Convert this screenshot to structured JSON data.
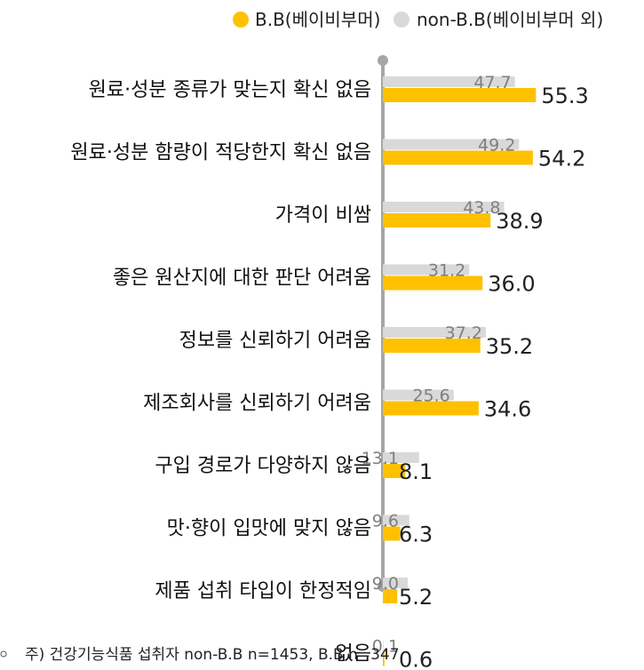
{
  "legend": {
    "bb": "B.B(베이비부머)",
    "non_bb": "non-B.B(베이비부머 외)"
  },
  "note": "주) 건강기능식품 섭취자 non-B.B n=1453, B.B n=347",
  "colors": {
    "bb": "#FFC000",
    "non_bb": "#D9D9D9",
    "axis": "#A6A6A6"
  },
  "chart_data": {
    "type": "bar",
    "orientation": "horizontal",
    "categories": [
      "원료·성분 종류가  맞는지 확신 없음",
      "원료·성분 함량이 적당한지 확신 없음",
      "가격이 비쌈",
      "좋은 원산지에 대한 판단 어려움",
      "정보를 신뢰하기 어려움",
      "제조회사를 신뢰하기 어려움",
      "구입 경로가 다양하지 않음",
      "맛·향이 입맛에 맞지 않음",
      "제품 섭취 타입이 한정적임",
      "없음"
    ],
    "series": [
      {
        "name": "non-B.B(베이비부머 외)",
        "values": [
          47.7,
          49.2,
          43.8,
          31.2,
          37.2,
          25.6,
          13.1,
          9.6,
          9.0,
          0.1
        ]
      },
      {
        "name": "B.B(베이비부머)",
        "values": [
          55.3,
          54.2,
          38.9,
          36.0,
          35.2,
          34.6,
          8.1,
          6.3,
          5.2,
          0.6
        ]
      }
    ],
    "xlim": [
      0,
      60
    ],
    "legend_position": "top-right"
  }
}
